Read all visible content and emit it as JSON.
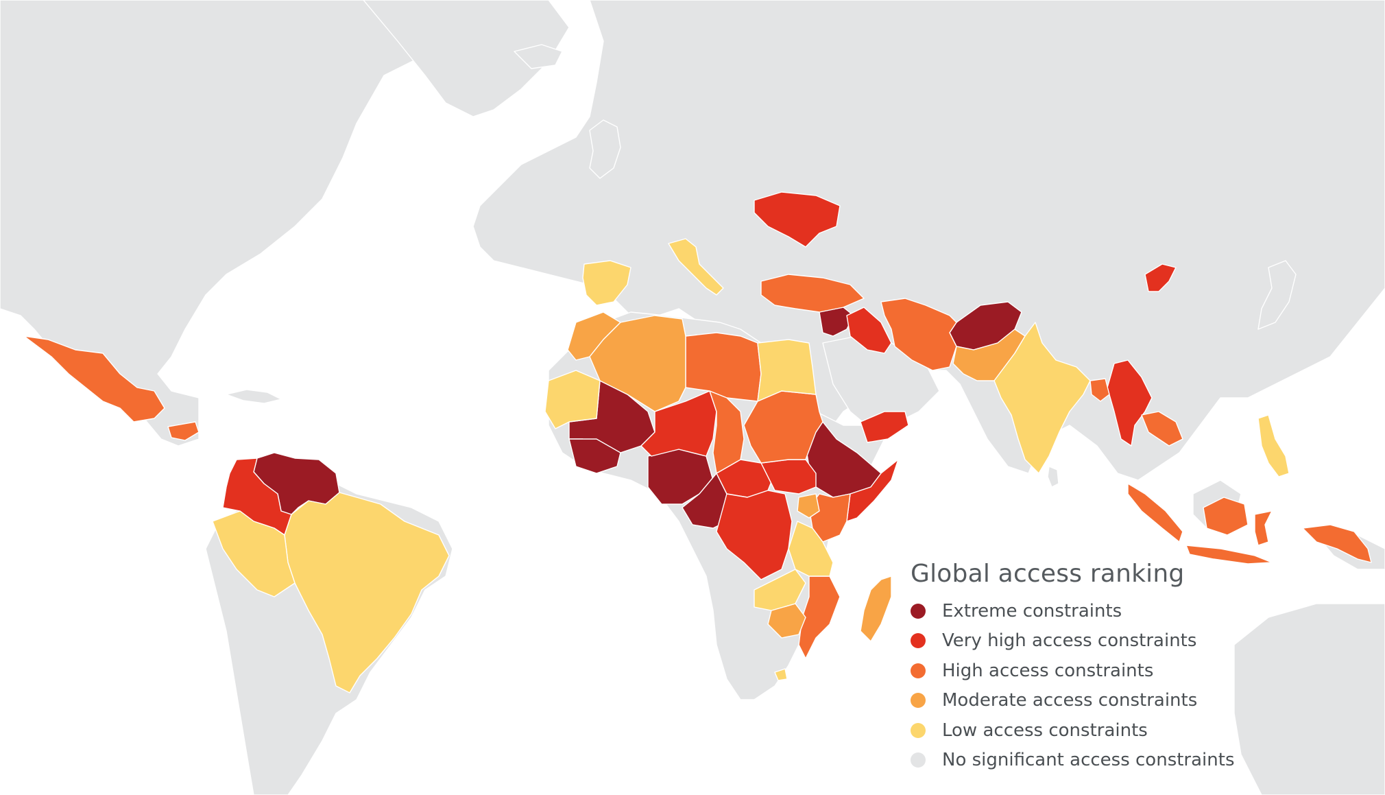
{
  "legend": {
    "title": "Global access ranking",
    "items": [
      {
        "key": "extreme",
        "label": "Extreme constraints",
        "color": "#9b1b24"
      },
      {
        "key": "very_high",
        "label": "Very high access constraints",
        "color": "#e3311f"
      },
      {
        "key": "high",
        "label": "High access constraints",
        "color": "#f36c31"
      },
      {
        "key": "moderate",
        "label": "Moderate access constraints",
        "color": "#f8a446"
      },
      {
        "key": "low",
        "label": "Low access constraints",
        "color": "#fcd66d"
      },
      {
        "key": "none",
        "label": "No significant access constraints",
        "color": "#e3e4e5"
      }
    ]
  },
  "colors": {
    "ocean": "#ffffff",
    "land": "#e3e4e5",
    "border": "#ffffff"
  },
  "regions": [
    {
      "name": "Venezuela",
      "level": "extreme"
    },
    {
      "name": "Mali",
      "level": "extreme"
    },
    {
      "name": "Burkina Faso",
      "level": "extreme"
    },
    {
      "name": "Nigeria",
      "level": "extreme"
    },
    {
      "name": "Cameroon",
      "level": "extreme"
    },
    {
      "name": "Ethiopia",
      "level": "extreme"
    },
    {
      "name": "Syria",
      "level": "extreme"
    },
    {
      "name": "Afghanistan",
      "level": "extreme"
    },
    {
      "name": "Colombia",
      "level": "very_high"
    },
    {
      "name": "Niger",
      "level": "very_high"
    },
    {
      "name": "Central African Republic",
      "level": "very_high"
    },
    {
      "name": "South Sudan",
      "level": "very_high"
    },
    {
      "name": "DR Congo",
      "level": "very_high"
    },
    {
      "name": "Somalia",
      "level": "very_high"
    },
    {
      "name": "Yemen",
      "level": "very_high"
    },
    {
      "name": "Iraq",
      "level": "very_high"
    },
    {
      "name": "Ukraine",
      "level": "very_high"
    },
    {
      "name": "Myanmar",
      "level": "very_high"
    },
    {
      "name": "North Korea",
      "level": "very_high"
    },
    {
      "name": "Mexico",
      "level": "high"
    },
    {
      "name": "Honduras",
      "level": "high"
    },
    {
      "name": "Libya",
      "level": "high"
    },
    {
      "name": "Chad",
      "level": "high"
    },
    {
      "name": "Sudan",
      "level": "high"
    },
    {
      "name": "Kenya",
      "level": "high"
    },
    {
      "name": "Mozambique",
      "level": "high"
    },
    {
      "name": "Turkey",
      "level": "high"
    },
    {
      "name": "Iran",
      "level": "high"
    },
    {
      "name": "Bangladesh",
      "level": "high"
    },
    {
      "name": "Indonesia",
      "level": "high"
    },
    {
      "name": "Algeria",
      "level": "moderate"
    },
    {
      "name": "Morocco",
      "level": "moderate"
    },
    {
      "name": "Pakistan",
      "level": "moderate"
    },
    {
      "name": "Madagascar",
      "level": "moderate"
    },
    {
      "name": "Zimbabwe",
      "level": "moderate"
    },
    {
      "name": "Spain",
      "level": "low"
    },
    {
      "name": "Italy",
      "level": "low"
    },
    {
      "name": "Egypt",
      "level": "low"
    },
    {
      "name": "India",
      "level": "low"
    },
    {
      "name": "Brazil",
      "level": "low"
    },
    {
      "name": "Peru",
      "level": "low"
    },
    {
      "name": "Tanzania",
      "level": "low"
    },
    {
      "name": "Zambia",
      "level": "low"
    },
    {
      "name": "Mauritania",
      "level": "low"
    },
    {
      "name": "Philippines",
      "level": "low"
    }
  ]
}
